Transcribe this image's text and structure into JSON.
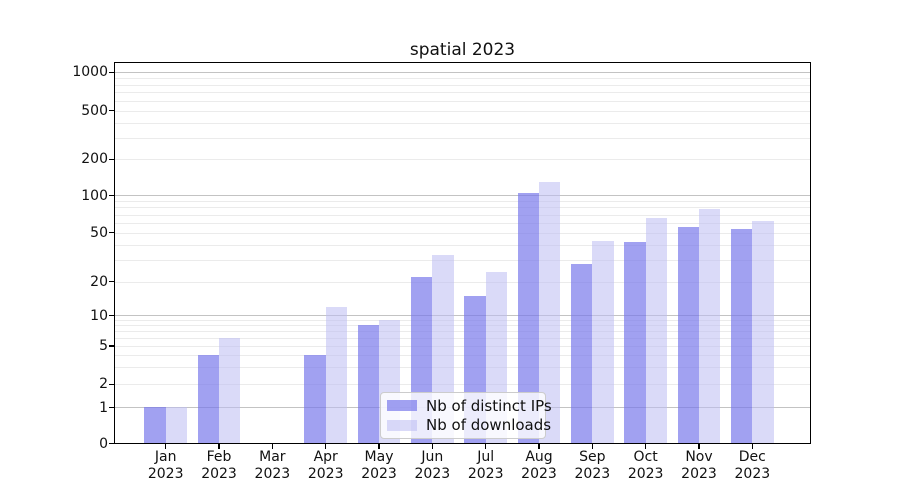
{
  "title": "spatial 2023",
  "legend": {
    "position": "lower center",
    "items": [
      {
        "label": "Nb of distinct IPs",
        "color": "#a5a5f2"
      },
      {
        "label": "Nb of downloads",
        "color": "#dadaf8"
      }
    ]
  },
  "chart_data": {
    "type": "bar",
    "title": "spatial 2023",
    "y_scale": "symlog",
    "y_ticks": [
      0,
      1,
      2,
      5,
      10,
      20,
      50,
      100,
      200,
      500,
      1000
    ],
    "ylim": [
      0,
      1200
    ],
    "grid": "horizontal major (decades, darker) + minor (lighter)",
    "legend_position": "lower center",
    "months": [
      {
        "label": "Jan",
        "year": "2023"
      },
      {
        "label": "Feb",
        "year": "2023"
      },
      {
        "label": "Mar",
        "year": "2023"
      },
      {
        "label": "Apr",
        "year": "2023"
      },
      {
        "label": "May",
        "year": "2023"
      },
      {
        "label": "Jun",
        "year": "2023"
      },
      {
        "label": "Jul",
        "year": "2023"
      },
      {
        "label": "Aug",
        "year": "2023"
      },
      {
        "label": "Sep",
        "year": "2023"
      },
      {
        "label": "Oct",
        "year": "2023"
      },
      {
        "label": "Nov",
        "year": "2023"
      },
      {
        "label": "Dec",
        "year": "2023"
      }
    ],
    "series": [
      {
        "name": "Nb of distinct IPs",
        "color": "#a5a5f2",
        "values": [
          1,
          4,
          0,
          4,
          8,
          22,
          15,
          105,
          28,
          42,
          56,
          54
        ]
      },
      {
        "name": "Nb of downloads",
        "color": "#dadaf8",
        "values": [
          1,
          6,
          0,
          12,
          9,
          33,
          24,
          130,
          43,
          66,
          78,
          62
        ]
      }
    ]
  }
}
